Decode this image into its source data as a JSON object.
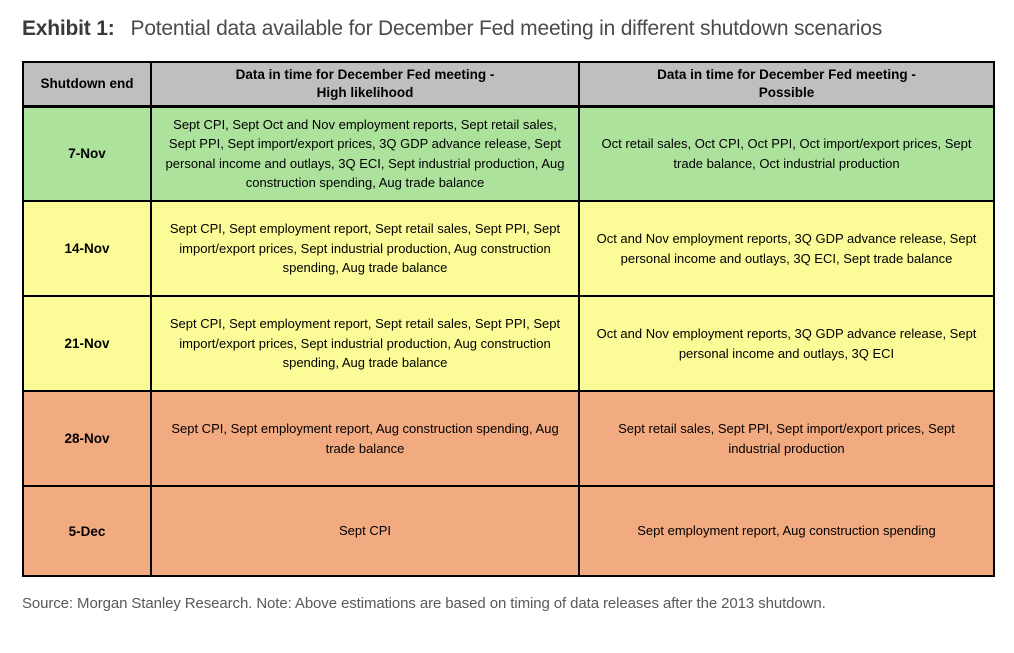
{
  "title": {
    "exhibit_label": "Exhibit 1:",
    "text": "Potential data available for December Fed meeting in different shutdown scenarios"
  },
  "colors": {
    "header_bg": "#BFBFBF",
    "row_green": "#ADE29D",
    "row_yellow": "#FBFB97",
    "row_orange": "#F2AA80",
    "border": "#000000"
  },
  "table": {
    "headers": [
      "Shutdown end",
      "Data in time for December Fed meeting -\nHigh likelihood",
      "Data in time for December Fed meeting -\nPossible"
    ],
    "rows": [
      {
        "date": "7-Nov",
        "color": "green",
        "high_likelihood": "Sept CPI, Sept Oct and Nov employment reports, Sept retail sales, Sept PPI, Sept import/export prices, 3Q GDP advance release, Sept personal income and outlays, 3Q ECI, Sept industrial production, Aug construction spending, Aug trade balance",
        "possible": "Oct retail sales, Oct CPI, Oct PPI, Oct import/export prices, Sept trade balance, Oct industrial production"
      },
      {
        "date": "14-Nov",
        "color": "yellow",
        "high_likelihood": "Sept CPI, Sept employment report, Sept retail sales, Sept PPI, Sept import/export prices, Sept industrial production, Aug construction spending, Aug trade balance",
        "possible": "Oct and Nov employment reports, 3Q GDP advance release, Sept personal income and outlays, 3Q ECI, Sept trade balance"
      },
      {
        "date": "21-Nov",
        "color": "yellow",
        "high_likelihood": "Sept CPI, Sept employment report, Sept retail sales, Sept PPI, Sept import/export prices, Sept industrial production, Aug construction spending, Aug trade balance",
        "possible": "Oct and Nov employment reports, 3Q GDP advance release, Sept personal income and outlays, 3Q ECI"
      },
      {
        "date": "28-Nov",
        "color": "orange",
        "high_likelihood": "Sept CPI, Sept employment report, Aug construction spending, Aug trade balance",
        "possible": "Sept retail sales, Sept PPI, Sept import/export prices, Sept industrial production"
      },
      {
        "date": "5-Dec",
        "color": "orange",
        "high_likelihood": "Sept CPI",
        "possible": "Sept employment report, Aug construction spending"
      }
    ]
  },
  "footer": {
    "source_note": "Source: Morgan Stanley Research. Note: Above estimations are based on timing of data releases after the 2013 shutdown."
  }
}
